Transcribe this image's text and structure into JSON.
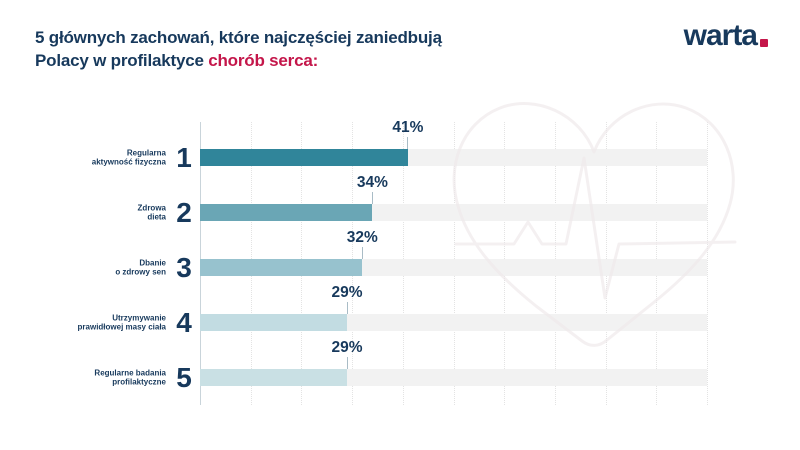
{
  "header": {
    "title_line1": "5 głównych zachowań, które najczęściej zaniedbują",
    "title_line2_normal": "Polacy w profilaktyce ",
    "title_line2_accent": "chorób serca:",
    "logo_text": "warta"
  },
  "colors": {
    "navy": "#17395c",
    "accent_red": "#c4164a",
    "track": "#f2f2f2",
    "axis_line": "#c9d4da",
    "gridline": "#e3e3e3",
    "value_tick": "#a9bcc6",
    "watermark": "#efe9eb"
  },
  "chart_data": {
    "type": "bar",
    "orientation": "horizontal",
    "title": "5 głównych zachowań, które najczęściej zaniedbują Polacy w profilaktyce chorób serca:",
    "categories": [
      "Regularna aktywność fizyczna",
      "Zdrowa dieta",
      "Dbanie o zdrowy sen",
      "Utrzymywanie prawidłowej masy ciała",
      "Regularne badania profilaktyczne"
    ],
    "ranks": [
      1,
      2,
      3,
      4,
      5
    ],
    "values": [
      41,
      34,
      32,
      29,
      29
    ],
    "value_labels": [
      "41%",
      "34%",
      "32%",
      "29%",
      "29%"
    ],
    "unit": "%",
    "xlim": [
      0,
      100
    ],
    "grid": true,
    "legend": false,
    "bar_colors": [
      "#30859a",
      "#6aa6b5",
      "#97c2ce",
      "#c2dce2",
      "#c9e0e4"
    ],
    "bars": [
      {
        "rank": "1",
        "label_lines": [
          "Regularna",
          "aktywność fizyczna"
        ],
        "value": 41,
        "value_label": "41%",
        "color": "#30859a"
      },
      {
        "rank": "2",
        "label_lines": [
          "Zdrowa",
          "dieta"
        ],
        "value": 34,
        "value_label": "34%",
        "color": "#6aa6b5"
      },
      {
        "rank": "3",
        "label_lines": [
          "Dbanie",
          "o zdrowy sen"
        ],
        "value": 32,
        "value_label": "32%",
        "color": "#97c2ce"
      },
      {
        "rank": "4",
        "label_lines": [
          "Utrzymywanie",
          "prawidłowej masy ciała"
        ],
        "value": 29,
        "value_label": "29%",
        "color": "#c2dce2"
      },
      {
        "rank": "5",
        "label_lines": [
          "Regularne badania",
          "profilaktyczne"
        ],
        "value": 29,
        "value_label": "29%",
        "color": "#c9e0e4"
      }
    ]
  }
}
